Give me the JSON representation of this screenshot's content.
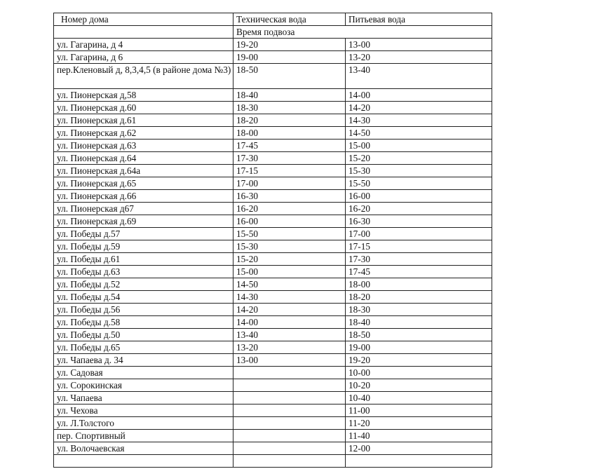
{
  "table": {
    "headers": [
      "Номер дома",
      "Техническая вода",
      "Питьевая вода"
    ],
    "subheader": "Время подвоза",
    "rows": [
      [
        "ул. Гагарина, д 4",
        "19-20",
        "13-00"
      ],
      [
        "ул. Гагарина, д 6",
        "19-00",
        "13-20"
      ],
      [
        "пер.Кленовый д, 8,3,4,5 (в районе дома №3)",
        "18-50",
        "13-40"
      ],
      [
        "ул. Пионерская д,58",
        "18-40",
        "14-00"
      ],
      [
        "ул. Пионерская д.60",
        "18-30",
        "14-20"
      ],
      [
        "ул. Пионерская д.61",
        "18-20",
        "14-30"
      ],
      [
        "ул. Пионерская д.62",
        "18-00",
        "14-50"
      ],
      [
        "ул. Пионерская д.63",
        "17-45",
        "15-00"
      ],
      [
        "ул. Пионерская д.64",
        "17-30",
        "15-20"
      ],
      [
        "ул. Пионерская д.64а",
        "17-15",
        "15-30"
      ],
      [
        "ул. Пионерская д.65",
        "17-00",
        "15-50"
      ],
      [
        "ул. Пионерская д.66",
        "16-30",
        "16-00"
      ],
      [
        "ул. Пионерская д67",
        "16-20",
        "16-20"
      ],
      [
        "ул. Пионерская д.69",
        "16-00",
        "16-30"
      ],
      [
        "ул. Победы д.57",
        "15-50",
        "17-00"
      ],
      [
        "ул. Победы д.59",
        "15-30",
        "17-15"
      ],
      [
        "ул. Победы д.61",
        "15-20",
        "17-30"
      ],
      [
        "ул. Победы д.63",
        "15-00",
        "17-45"
      ],
      [
        "ул. Победы д.52",
        "14-50",
        "18-00"
      ],
      [
        "ул. Победы д.54",
        "14-30",
        "18-20"
      ],
      [
        "ул. Победы д.56",
        "14-20",
        "18-30"
      ],
      [
        "ул. Победы д.58",
        "14-00",
        "18-40"
      ],
      [
        "ул. Победы д.50",
        "13-40",
        "18-50"
      ],
      [
        "ул. Победы д.65",
        "13-20",
        "19-00"
      ],
      [
        "ул. Чапаева д. 34",
        "13-00",
        "19-20"
      ],
      [
        "ул. Садовая",
        "",
        "10-00"
      ],
      [
        "ул. Сорокинская",
        "",
        "10-20"
      ],
      [
        "ул. Чапаева",
        "",
        "10-40"
      ],
      [
        "ул. Чехова",
        "",
        "11-00"
      ],
      [
        "ул. Л.Толстого",
        "",
        "11-20"
      ],
      [
        "пер. Спортивный",
        "",
        "11-40"
      ],
      [
        "ул. Волочаевская",
        "",
        "12-00"
      ],
      [
        "",
        "",
        ""
      ]
    ]
  }
}
